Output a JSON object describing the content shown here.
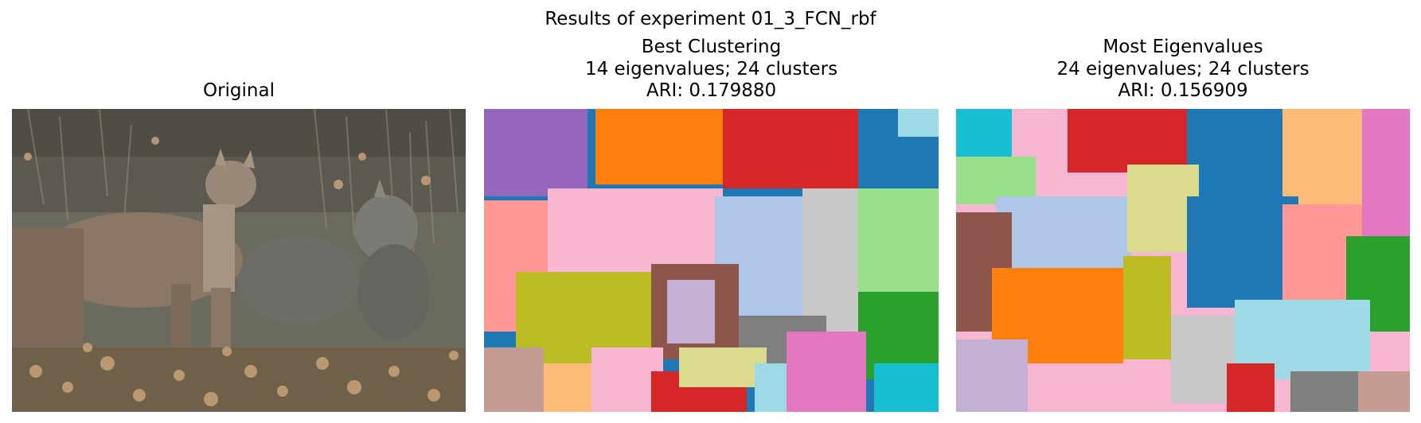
{
  "figure": {
    "suptitle": "Results of experiment 01_3_FCN_rbf"
  },
  "panels": [
    {
      "title_lines": [
        "Original"
      ],
      "image_description_name": "cougar-photo"
    },
    {
      "title_lines": [
        "Best Clustering",
        "14 eigenvalues; 24 clusters",
        "ARI: 0.179880"
      ],
      "image_description_name": "segmentation-best"
    },
    {
      "title_lines": [
        "Most Eigenvalues",
        "24 eigenvalues; 24 clusters",
        "ARI: 0.156909"
      ],
      "image_description_name": "segmentation-most"
    }
  ],
  "colors": {
    "tab_blue": "#1f77b4",
    "tab_orange": "#ff7f0e",
    "tab_green": "#2ca02c",
    "tab_red": "#d62728",
    "tab_purple": "#9467bd",
    "tab_brown": "#8c564b",
    "tab_pink": "#e377c2",
    "tab_gray": "#7f7f7f",
    "tab_olive": "#bcbd22",
    "tab_cyan": "#17becf"
  }
}
